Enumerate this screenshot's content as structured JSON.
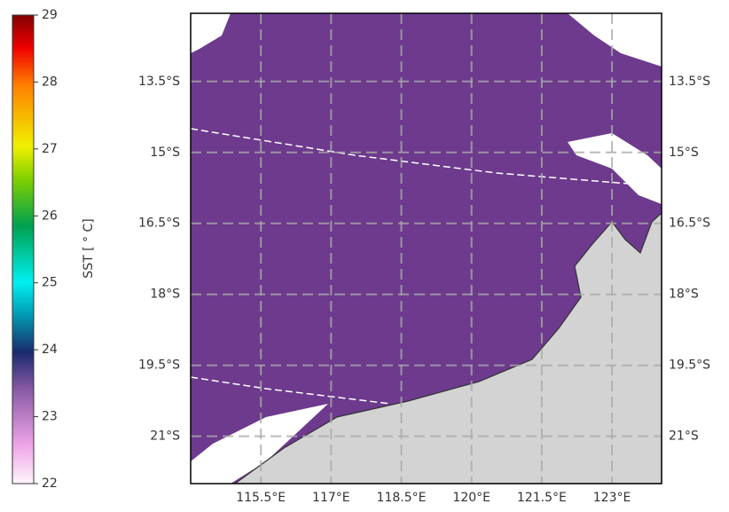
{
  "colorbar": {
    "label": "SST [ ° C]",
    "lim": [
      22,
      29
    ],
    "ticks": [
      22,
      23,
      24,
      25,
      26,
      27,
      28,
      29
    ]
  },
  "map": {
    "lonlim": [
      114,
      124.06
    ],
    "latlim": [
      -22,
      -12.06
    ],
    "lat_ticks": [
      {
        "value": -13.5,
        "label": "13.5°S"
      },
      {
        "value": -15,
        "label": "15°S"
      },
      {
        "value": -16.5,
        "label": "16.5°S"
      },
      {
        "value": -18,
        "label": "18°S"
      },
      {
        "value": -19.5,
        "label": "19.5°S"
      },
      {
        "value": -21,
        "label": "21°S"
      }
    ],
    "lon_ticks": [
      {
        "value": 115.5,
        "label": "115.5°E"
      },
      {
        "value": 117,
        "label": "117°E"
      },
      {
        "value": 118.5,
        "label": "118.5°E"
      },
      {
        "value": 120,
        "label": "120°E"
      },
      {
        "value": 121.5,
        "label": "121.5°E"
      },
      {
        "value": 123,
        "label": "123°E"
      }
    ]
  }
}
